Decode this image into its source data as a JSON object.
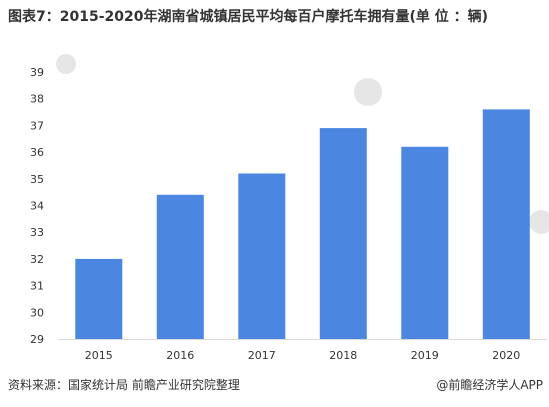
{
  "title": "图表7：2015-2020年湖南省城镇居民平均每百户摩托车拥有量(单 位 ：辆)",
  "source": "资料来源：国家统计局 前瞻产业研究院整理",
  "credit": "@前瞻经济学人APP",
  "colors": {
    "bar": "#4b86e0",
    "axis": "#d9d9d9",
    "tick_text": "#333333"
  },
  "chart_data": {
    "type": "bar",
    "title": "图表7：2015-2020年湖南省城镇居民平均每百户摩托车拥有量(单 位 ：辆)",
    "categories": [
      "2015",
      "2016",
      "2017",
      "2018",
      "2019",
      "2020"
    ],
    "values": [
      32.0,
      34.4,
      35.2,
      36.9,
      36.2,
      37.6
    ],
    "xlabel": "",
    "ylabel": "",
    "ylim": [
      29,
      39
    ],
    "yticks": [
      29,
      30,
      31,
      32,
      33,
      34,
      35,
      36,
      37,
      38,
      39
    ],
    "grid": false
  }
}
